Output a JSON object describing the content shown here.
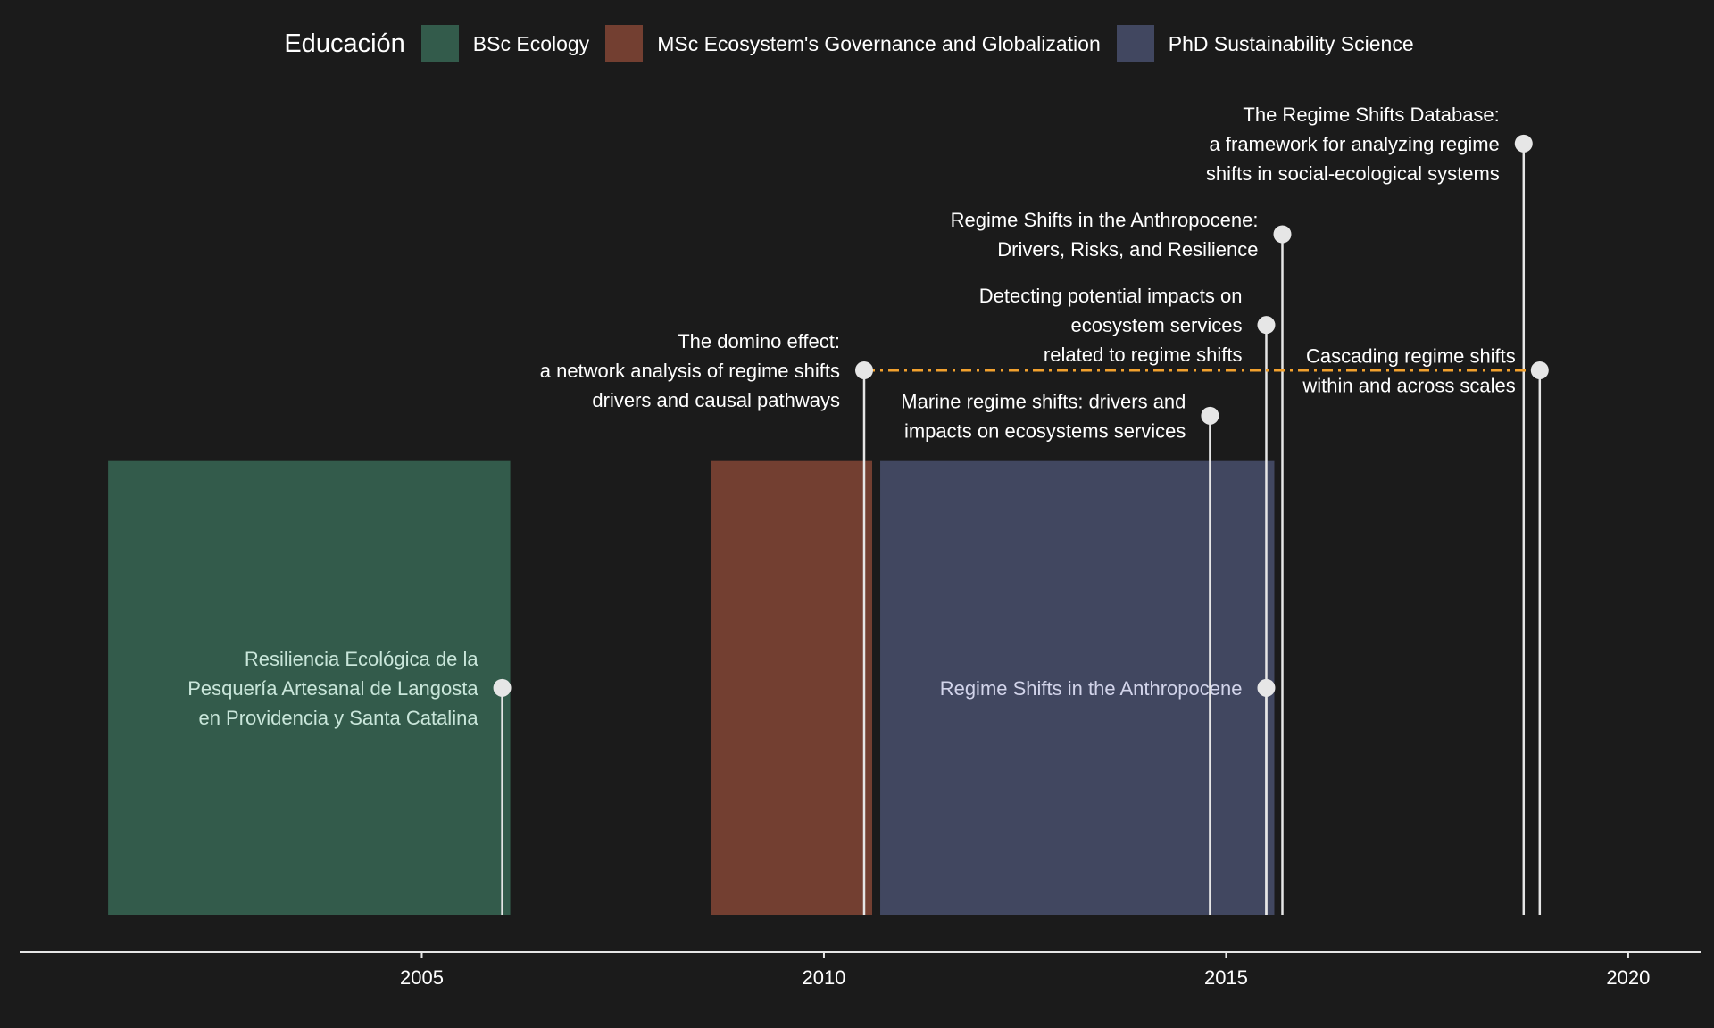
{
  "chart_data": {
    "type": "timeline",
    "legend": {
      "title": "Educación",
      "placement": "top",
      "items": [
        {
          "label": "BSc Ecology",
          "color": "#335b4b"
        },
        {
          "label": "MSc Ecosystem's Governance and Globalization",
          "color": "#733f31"
        },
        {
          "label": "PhD Sustainability Science",
          "color": "#414760"
        }
      ]
    },
    "xlim": [
      2000,
      2020.9
    ],
    "x_ticks": [
      2005,
      2010,
      2015,
      2020
    ],
    "y_range": [
      0,
      9
    ],
    "grid": false,
    "education": [
      {
        "label": "BSc Ecology",
        "start": 2001.1,
        "end": 2006.1,
        "color": "#335b4b"
      },
      {
        "label": "MSc Ecosystem's Governance and Globalization",
        "start": 2008.6,
        "end": 2010.6,
        "color": "#733f31"
      },
      {
        "label": "PhD Sustainability Science",
        "start": 2010.7,
        "end": 2015.6,
        "color": "#414760"
      }
    ],
    "education_height": 5,
    "publications": [
      {
        "x": 2006.0,
        "y": 2.5,
        "lines": [
          "Resiliencia Ecológica de la",
          "Pesquería Artesanal de Langosta",
          "en Providencia y Santa Catalina"
        ],
        "text_color": "#c9e6da"
      },
      {
        "x": 2010.5,
        "y": 6.0,
        "lines": [
          "The domino effect:",
          "a network analysis of regime shifts",
          "drivers and causal pathways"
        ],
        "text_color": "#ffffff"
      },
      {
        "x": 2014.8,
        "y": 5.5,
        "lines": [
          "Marine regime shifts: drivers and",
          "impacts on ecosystems services"
        ],
        "text_color": "#ffffff"
      },
      {
        "x": 2015.5,
        "y": 2.5,
        "lines": [
          "Regime Shifts in the Anthropocene"
        ],
        "text_color": "#d2d4ea"
      },
      {
        "x": 2015.5,
        "y": 6.5,
        "lines": [
          "Detecting potential impacts on",
          "ecosystem services",
          "related to regime shifts"
        ],
        "text_color": "#ffffff"
      },
      {
        "x": 2015.7,
        "y": 7.5,
        "lines": [
          "Regime Shifts in the Anthropocene:",
          "Drivers, Risks, and Resilience"
        ],
        "text_color": "#ffffff"
      },
      {
        "x": 2018.7,
        "y": 8.5,
        "lines": [
          "The Regime Shifts Database:",
          "a framework for analyzing regime",
          "shifts in social-ecological systems"
        ],
        "text_color": "#ffffff"
      },
      {
        "x": 2018.9,
        "y": 6.0,
        "lines": [
          "Cascading regime shifts",
          "within and across scales"
        ],
        "text_color": "#ffffff"
      }
    ],
    "connector": {
      "from_x": 2010.5,
      "to_x": 2018.9,
      "y": 6.0,
      "color": "#f2a12e",
      "style": "dash-dot"
    }
  }
}
